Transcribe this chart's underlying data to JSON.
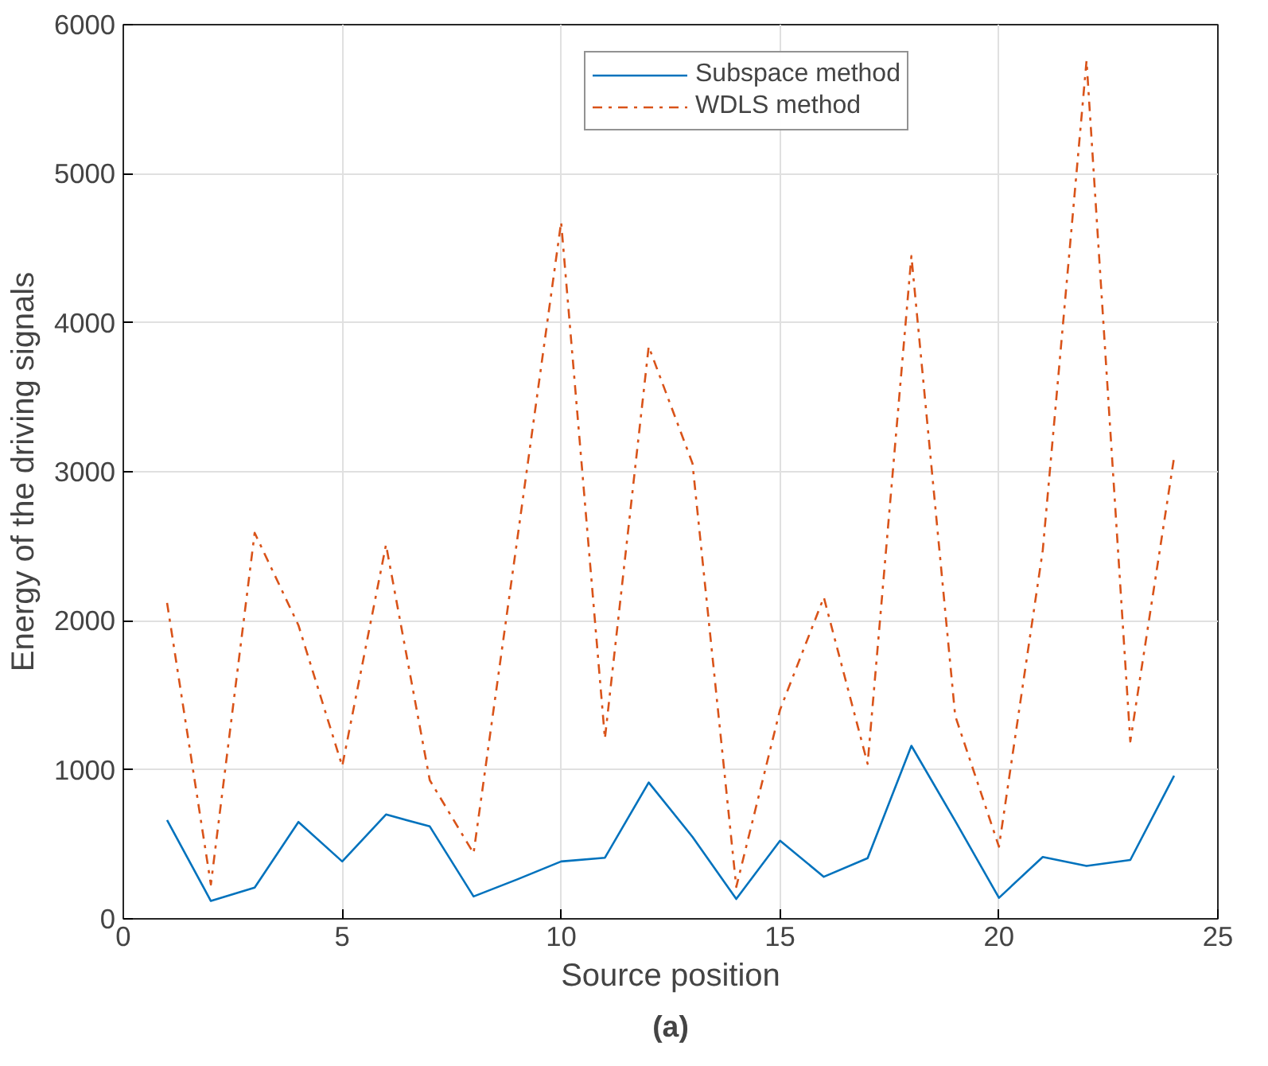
{
  "chart_data": {
    "type": "line",
    "xlabel": "Source position",
    "ylabel": "Energy of the driving signals",
    "annotations": [
      "(a)"
    ],
    "x": [
      1,
      2,
      3,
      4,
      5,
      6,
      7,
      8,
      9,
      10,
      11,
      12,
      13,
      14,
      15,
      16,
      17,
      18,
      19,
      20,
      21,
      22,
      23,
      24
    ],
    "series": [
      {
        "name": "Subspace method",
        "color": "#0072bd",
        "line_style": "solid",
        "values": [
          663,
          120,
          210,
          650,
          385,
          700,
          620,
          150,
          265,
          385,
          410,
          915,
          550,
          133,
          524,
          282,
          407,
          1161,
          657,
          141,
          415,
          355,
          395,
          960
        ]
      },
      {
        "name": "WDLS method",
        "color": "#d95319",
        "line_style": "dashdot",
        "values": [
          2120,
          230,
          2590,
          1970,
          1025,
          2510,
          930,
          440,
          2550,
          4675,
          1210,
          3840,
          3056,
          214,
          1403,
          2157,
          1040,
          4448,
          1363,
          484,
          2472,
          5758,
          1190,
          3097
        ]
      }
    ],
    "xlim": [
      0,
      25
    ],
    "xticks": [
      0,
      5,
      10,
      15,
      20,
      25
    ],
    "ylim": [
      0,
      6000
    ],
    "yticks": [
      0,
      1000,
      2000,
      3000,
      4000,
      5000,
      6000
    ],
    "grid": true,
    "legend": "top right"
  }
}
